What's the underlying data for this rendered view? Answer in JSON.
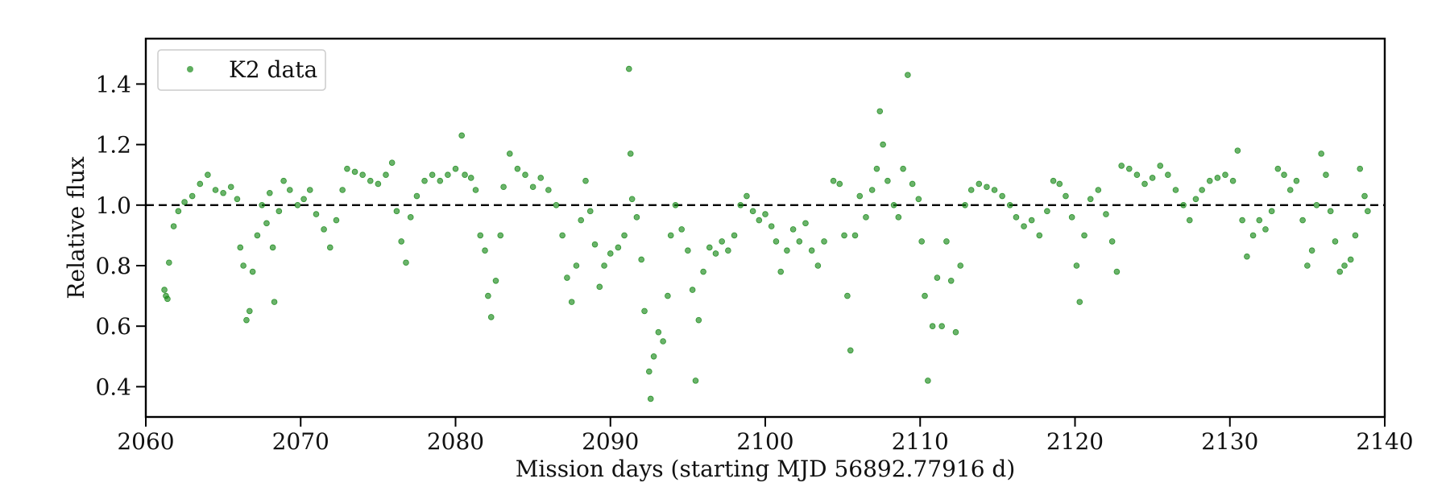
{
  "chart_data": {
    "type": "scatter",
    "title": "",
    "xlabel": "Mission days (starting MJD 56892.77916 d)",
    "ylabel": "Relative flux",
    "xlim": [
      2060,
      2140
    ],
    "ylim": [
      0.3,
      1.55
    ],
    "xticks": [
      2060,
      2070,
      2080,
      2090,
      2100,
      2110,
      2120,
      2130,
      2140
    ],
    "yticks": [
      0.4,
      0.6,
      0.8,
      1.0,
      1.2,
      1.4
    ],
    "xtick_labels": [
      "2060",
      "2070",
      "2080",
      "2090",
      "2100",
      "2110",
      "2120",
      "2130",
      "2140"
    ],
    "ytick_labels": [
      "0.4",
      "0.6",
      "0.8",
      "1.0",
      "1.2",
      "1.4"
    ],
    "grid": false,
    "legend": {
      "position": "top-left",
      "entries": [
        "K2 data"
      ]
    },
    "series_color": "#1a8a1a",
    "reference_line": {
      "y": 1.0,
      "style": "dashed",
      "color": "#000000"
    },
    "series": [
      {
        "name": "K2 data",
        "points": [
          [
            2061.2,
            0.72
          ],
          [
            2061.3,
            0.7
          ],
          [
            2061.4,
            0.69
          ],
          [
            2061.5,
            0.81
          ],
          [
            2061.8,
            0.93
          ],
          [
            2062.1,
            0.98
          ],
          [
            2062.5,
            1.01
          ],
          [
            2063.0,
            1.03
          ],
          [
            2063.5,
            1.07
          ],
          [
            2064.0,
            1.1
          ],
          [
            2064.5,
            1.05
          ],
          [
            2065.0,
            1.04
          ],
          [
            2065.5,
            1.06
          ],
          [
            2065.9,
            1.02
          ],
          [
            2066.1,
            0.86
          ],
          [
            2066.3,
            0.8
          ],
          [
            2066.5,
            0.62
          ],
          [
            2066.7,
            0.65
          ],
          [
            2066.9,
            0.78
          ],
          [
            2067.2,
            0.9
          ],
          [
            2067.5,
            1.0
          ],
          [
            2067.8,
            0.94
          ],
          [
            2068.0,
            1.04
          ],
          [
            2068.2,
            0.86
          ],
          [
            2068.3,
            0.68
          ],
          [
            2068.6,
            0.98
          ],
          [
            2068.9,
            1.08
          ],
          [
            2069.3,
            1.05
          ],
          [
            2069.8,
            1.0
          ],
          [
            2070.2,
            1.02
          ],
          [
            2070.6,
            1.05
          ],
          [
            2071.0,
            0.97
          ],
          [
            2071.5,
            0.92
          ],
          [
            2071.9,
            0.86
          ],
          [
            2072.3,
            0.95
          ],
          [
            2072.7,
            1.05
          ],
          [
            2073.0,
            1.12
          ],
          [
            2073.5,
            1.11
          ],
          [
            2074.0,
            1.1
          ],
          [
            2074.5,
            1.08
          ],
          [
            2075.0,
            1.07
          ],
          [
            2075.5,
            1.1
          ],
          [
            2075.9,
            1.14
          ],
          [
            2076.2,
            0.98
          ],
          [
            2076.5,
            0.88
          ],
          [
            2076.8,
            0.81
          ],
          [
            2077.1,
            0.96
          ],
          [
            2077.5,
            1.03
          ],
          [
            2078.0,
            1.08
          ],
          [
            2078.5,
            1.1
          ],
          [
            2079.0,
            1.08
          ],
          [
            2079.5,
            1.1
          ],
          [
            2080.0,
            1.12
          ],
          [
            2080.4,
            1.23
          ],
          [
            2080.6,
            1.1
          ],
          [
            2081.0,
            1.09
          ],
          [
            2081.3,
            1.05
          ],
          [
            2081.6,
            0.9
          ],
          [
            2081.9,
            0.85
          ],
          [
            2082.1,
            0.7
          ],
          [
            2082.3,
            0.63
          ],
          [
            2082.6,
            0.75
          ],
          [
            2082.9,
            0.9
          ],
          [
            2083.1,
            1.06
          ],
          [
            2083.5,
            1.17
          ],
          [
            2084.0,
            1.12
          ],
          [
            2084.5,
            1.1
          ],
          [
            2085.0,
            1.06
          ],
          [
            2085.5,
            1.09
          ],
          [
            2086.0,
            1.05
          ],
          [
            2086.5,
            1.0
          ],
          [
            2086.9,
            0.9
          ],
          [
            2087.2,
            0.76
          ],
          [
            2087.5,
            0.68
          ],
          [
            2087.8,
            0.8
          ],
          [
            2088.1,
            0.95
          ],
          [
            2088.4,
            1.08
          ],
          [
            2088.7,
            0.98
          ],
          [
            2089.0,
            0.87
          ],
          [
            2089.3,
            0.73
          ],
          [
            2089.6,
            0.8
          ],
          [
            2090.0,
            0.84
          ],
          [
            2090.5,
            0.86
          ],
          [
            2090.9,
            0.9
          ],
          [
            2091.2,
            1.45
          ],
          [
            2091.3,
            1.17
          ],
          [
            2091.4,
            1.02
          ],
          [
            2091.7,
            0.96
          ],
          [
            2092.0,
            0.82
          ],
          [
            2092.2,
            0.65
          ],
          [
            2092.5,
            0.45
          ],
          [
            2092.6,
            0.36
          ],
          [
            2092.8,
            0.5
          ],
          [
            2093.1,
            0.58
          ],
          [
            2093.4,
            0.55
          ],
          [
            2093.7,
            0.7
          ],
          [
            2093.9,
            0.9
          ],
          [
            2094.2,
            1.0
          ],
          [
            2094.6,
            0.92
          ],
          [
            2095.0,
            0.85
          ],
          [
            2095.3,
            0.72
          ],
          [
            2095.5,
            0.42
          ],
          [
            2095.7,
            0.62
          ],
          [
            2096.0,
            0.78
          ],
          [
            2096.4,
            0.86
          ],
          [
            2096.8,
            0.84
          ],
          [
            2097.2,
            0.88
          ],
          [
            2097.6,
            0.85
          ],
          [
            2098.0,
            0.9
          ],
          [
            2098.4,
            1.0
          ],
          [
            2098.8,
            1.03
          ],
          [
            2099.2,
            0.98
          ],
          [
            2099.6,
            0.95
          ],
          [
            2100.0,
            0.97
          ],
          [
            2100.4,
            0.93
          ],
          [
            2100.7,
            0.88
          ],
          [
            2101.0,
            0.78
          ],
          [
            2101.4,
            0.85
          ],
          [
            2101.8,
            0.92
          ],
          [
            2102.2,
            0.88
          ],
          [
            2102.6,
            0.94
          ],
          [
            2103.0,
            0.85
          ],
          [
            2103.4,
            0.8
          ],
          [
            2103.8,
            0.88
          ],
          [
            2104.4,
            1.08
          ],
          [
            2104.8,
            1.07
          ],
          [
            2105.1,
            0.9
          ],
          [
            2105.3,
            0.7
          ],
          [
            2105.5,
            0.52
          ],
          [
            2105.8,
            0.9
          ],
          [
            2106.1,
            1.03
          ],
          [
            2106.5,
            0.96
          ],
          [
            2106.9,
            1.05
          ],
          [
            2107.2,
            1.12
          ],
          [
            2107.4,
            1.31
          ],
          [
            2107.6,
            1.2
          ],
          [
            2107.9,
            1.08
          ],
          [
            2108.3,
            1.0
          ],
          [
            2108.6,
            0.96
          ],
          [
            2108.9,
            1.12
          ],
          [
            2109.2,
            1.43
          ],
          [
            2109.5,
            1.07
          ],
          [
            2109.9,
            1.02
          ],
          [
            2110.1,
            0.88
          ],
          [
            2110.3,
            0.7
          ],
          [
            2110.5,
            0.42
          ],
          [
            2110.8,
            0.6
          ],
          [
            2111.1,
            0.76
          ],
          [
            2111.4,
            0.6
          ],
          [
            2111.7,
            0.88
          ],
          [
            2112.0,
            0.75
          ],
          [
            2112.3,
            0.58
          ],
          [
            2112.6,
            0.8
          ],
          [
            2112.9,
            1.0
          ],
          [
            2113.3,
            1.05
          ],
          [
            2113.8,
            1.07
          ],
          [
            2114.3,
            1.06
          ],
          [
            2114.8,
            1.05
          ],
          [
            2115.3,
            1.03
          ],
          [
            2115.8,
            1.0
          ],
          [
            2116.2,
            0.96
          ],
          [
            2116.7,
            0.93
          ],
          [
            2117.2,
            0.95
          ],
          [
            2117.7,
            0.9
          ],
          [
            2118.2,
            0.98
          ],
          [
            2118.6,
            1.08
          ],
          [
            2119.0,
            1.07
          ],
          [
            2119.4,
            1.03
          ],
          [
            2119.8,
            0.96
          ],
          [
            2120.1,
            0.8
          ],
          [
            2120.3,
            0.68
          ],
          [
            2120.6,
            0.9
          ],
          [
            2121.0,
            1.02
          ],
          [
            2121.5,
            1.05
          ],
          [
            2122.0,
            0.97
          ],
          [
            2122.4,
            0.88
          ],
          [
            2122.7,
            0.78
          ],
          [
            2123.0,
            1.13
          ],
          [
            2123.5,
            1.12
          ],
          [
            2124.0,
            1.1
          ],
          [
            2124.5,
            1.07
          ],
          [
            2125.0,
            1.09
          ],
          [
            2125.5,
            1.13
          ],
          [
            2126.0,
            1.1
          ],
          [
            2126.5,
            1.05
          ],
          [
            2127.0,
            1.0
          ],
          [
            2127.4,
            0.95
          ],
          [
            2127.8,
            1.02
          ],
          [
            2128.2,
            1.05
          ],
          [
            2128.7,
            1.08
          ],
          [
            2129.2,
            1.09
          ],
          [
            2129.7,
            1.1
          ],
          [
            2130.2,
            1.08
          ],
          [
            2130.5,
            1.18
          ],
          [
            2130.8,
            0.95
          ],
          [
            2131.1,
            0.83
          ],
          [
            2131.5,
            0.9
          ],
          [
            2131.9,
            0.95
          ],
          [
            2132.3,
            0.92
          ],
          [
            2132.7,
            0.98
          ],
          [
            2133.1,
            1.12
          ],
          [
            2133.5,
            1.1
          ],
          [
            2133.9,
            1.05
          ],
          [
            2134.3,
            1.08
          ],
          [
            2134.7,
            0.95
          ],
          [
            2135.0,
            0.8
          ],
          [
            2135.3,
            0.85
          ],
          [
            2135.6,
            1.0
          ],
          [
            2135.9,
            1.17
          ],
          [
            2136.2,
            1.1
          ],
          [
            2136.5,
            0.98
          ],
          [
            2136.8,
            0.88
          ],
          [
            2137.1,
            0.78
          ],
          [
            2137.4,
            0.8
          ],
          [
            2137.8,
            0.82
          ],
          [
            2138.1,
            0.9
          ],
          [
            2138.4,
            1.12
          ],
          [
            2138.7,
            1.03
          ],
          [
            2138.9,
            0.98
          ]
        ]
      }
    ]
  }
}
